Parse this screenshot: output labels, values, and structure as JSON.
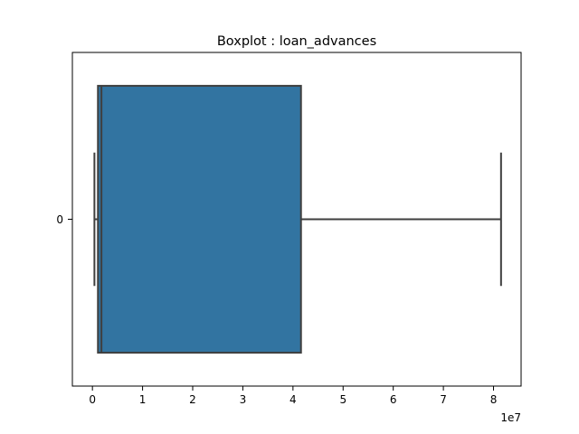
{
  "chart_data": {
    "type": "boxplot",
    "orientation": "horizontal",
    "title": "Boxplot : loan_advances",
    "xlabel": "",
    "ylabel": "",
    "x_offset_label": "1e7",
    "xlim": [
      -0.4,
      8.55
    ],
    "x_ticks": [
      0,
      1,
      2,
      3,
      4,
      5,
      6,
      7,
      8
    ],
    "x_tick_labels": [
      "0",
      "1",
      "2",
      "3",
      "4",
      "5",
      "6",
      "7",
      "8"
    ],
    "y_tick_labels": [
      "0"
    ],
    "grid": false,
    "series": [
      {
        "category": "0",
        "whisker_low": 0.04,
        "q1": 0.11,
        "median": 0.18,
        "q3": 4.16,
        "whisker_high": 8.15
      }
    ],
    "colors": {
      "box_fill": "#3274a1",
      "lines": "#3f3f3f",
      "axes": "#000000"
    }
  }
}
